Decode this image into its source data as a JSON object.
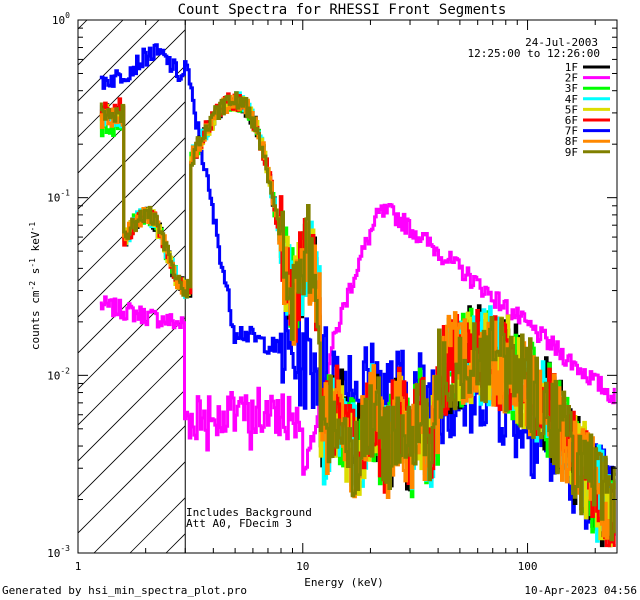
{
  "chart_data": {
    "type": "line",
    "title": "Count Spectra for RHESSI Front Segments",
    "xlabel": "Energy (keV)",
    "ylabel_main": "counts cm",
    "ylabel_sup1": "-2",
    "ylabel_mid": " s",
    "ylabel_sup2": "-1",
    "ylabel_end": " keV",
    "ylabel_sup3": "-1",
    "x_scale": "log",
    "y_scale": "log",
    "xlim": [
      1,
      250
    ],
    "ylim": [
      0.001,
      1
    ],
    "x_ticks": [
      {
        "value": 1,
        "label": "1"
      },
      {
        "value": 10,
        "label": "10"
      },
      {
        "value": 100,
        "label": "100"
      }
    ],
    "y_ticks": [
      {
        "value": 1,
        "base": "10",
        "exp": "0"
      },
      {
        "value": 0.1,
        "base": "10",
        "exp": "-1"
      },
      {
        "value": 0.01,
        "base": "10",
        "exp": "-2"
      },
      {
        "value": 0.001,
        "base": "10",
        "exp": "-3"
      }
    ],
    "date": "24-Jul-2003",
    "time_range": "12:25:00 to 12:26:00",
    "annotations": [
      "Includes Background",
      "Att A0, FDecim 3"
    ],
    "hatched_region_max_keV": 3,
    "footer_left": "Generated by hsi_min_spectra_plot.pro",
    "footer_right": "10-Apr-2023 04:56",
    "series": [
      {
        "name": "1F",
        "color": "#000000"
      },
      {
        "name": "2F",
        "color": "#ff00ff"
      },
      {
        "name": "3F",
        "color": "#00ff00"
      },
      {
        "name": "4F",
        "color": "#00ffff"
      },
      {
        "name": "5F",
        "color": "#dddd00"
      },
      {
        "name": "6F",
        "color": "#ff0000"
      },
      {
        "name": "7F",
        "color": "#0000ff"
      },
      {
        "name": "8F",
        "color": "#ff8800"
      },
      {
        "name": "9F",
        "color": "#808000"
      }
    ]
  }
}
